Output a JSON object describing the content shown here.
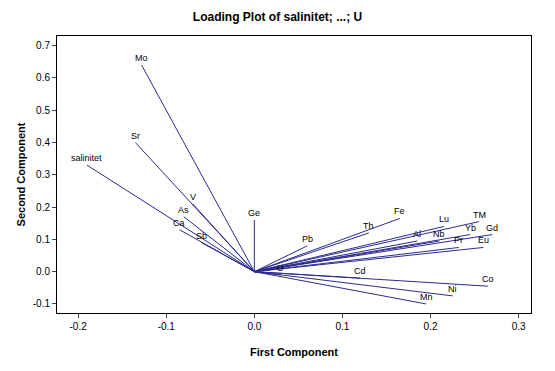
{
  "chart_data": {
    "type": "loading",
    "title": "Loading Plot of salinitet; ...; U",
    "x_label": "First Component",
    "y_label": "Second Component",
    "color": "#2b2b8f",
    "xlim": [
      -0.224,
      0.314
    ],
    "ylim": [
      -0.128,
      0.73
    ],
    "xticks": [
      -0.2,
      -0.1,
      {
        "value": 0,
        "label": "0.0"
      },
      0.1,
      0.2,
      0.3
    ],
    "yticks": [
      -0.1,
      {
        "value": 0,
        "label": "0.0"
      },
      0.1,
      0.2,
      0.3,
      0.4,
      0.5,
      0.6,
      0.7
    ],
    "points": [
      {
        "label": "Mo",
        "x": -0.128,
        "y": 0.64
      },
      {
        "label": "Sr",
        "x": -0.135,
        "y": 0.4
      },
      {
        "label": "salinitet",
        "x": -0.19,
        "y": 0.33
      },
      {
        "label": "V",
        "x": -0.07,
        "y": 0.21
      },
      {
        "label": "As",
        "x": -0.08,
        "y": 0.17
      },
      {
        "label": "Ca",
        "x": -0.085,
        "y": 0.13
      },
      {
        "label": "Sb",
        "x": -0.06,
        "y": 0.09
      },
      {
        "label": "Ge",
        "x": 0.0,
        "y": 0.16
      },
      {
        "label": "Pb",
        "x": 0.06,
        "y": 0.08
      },
      {
        "label": "Th",
        "x": 0.13,
        "y": 0.12
      },
      {
        "label": "Fe",
        "x": 0.165,
        "y": 0.165
      },
      {
        "label": "Lu",
        "x": 0.215,
        "y": 0.14
      },
      {
        "label": "TM",
        "x": 0.255,
        "y": 0.155
      },
      {
        "label": "Yb",
        "x": 0.245,
        "y": 0.115
      },
      {
        "label": "Gd",
        "x": 0.27,
        "y": 0.115
      },
      {
        "label": "Al",
        "x": 0.185,
        "y": 0.095
      },
      {
        "label": "Nb",
        "x": 0.21,
        "y": 0.095
      },
      {
        "label": "Pr",
        "x": 0.232,
        "y": 0.075
      },
      {
        "label": "Eu",
        "x": 0.26,
        "y": 0.075
      },
      {
        "label": "U",
        "x": 0.03,
        "y": -0.01
      },
      {
        "label": "Cd",
        "x": 0.12,
        "y": -0.02
      },
      {
        "label": "Co",
        "x": 0.265,
        "y": -0.045
      },
      {
        "label": "Ni",
        "x": 0.225,
        "y": -0.075
      },
      {
        "label": "Mn",
        "x": 0.195,
        "y": -0.1
      }
    ]
  }
}
